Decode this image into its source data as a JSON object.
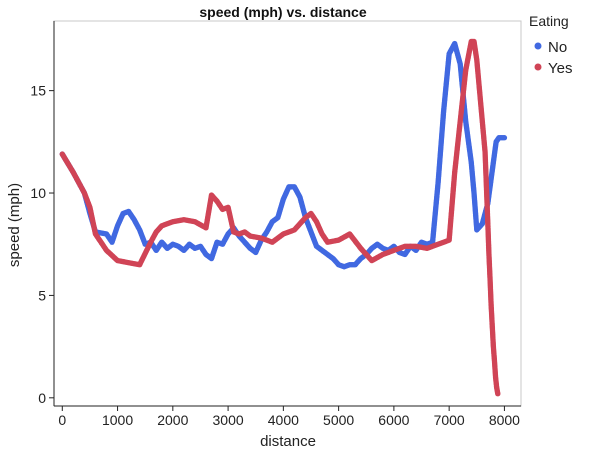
{
  "chart_data": {
    "type": "scatter",
    "title": "speed (mph) vs. distance",
    "xlabel": "distance",
    "ylabel": "speed (mph)",
    "xlim": [
      -150,
      8300
    ],
    "ylim": [
      -0.4,
      18.4
    ],
    "x_ticks": [
      0,
      1000,
      2000,
      3000,
      4000,
      5000,
      6000,
      7000,
      8000
    ],
    "y_ticks": [
      0,
      5,
      10,
      15
    ],
    "legend": {
      "title": "Eating",
      "position": "right"
    },
    "series": [
      {
        "name": "No",
        "color": "#4169E1",
        "x": [
          0,
          200,
          400,
          500,
          600,
          800,
          900,
          1000,
          1100,
          1200,
          1300,
          1400,
          1500,
          1600,
          1700,
          1800,
          1900,
          2000,
          2100,
          2200,
          2300,
          2400,
          2500,
          2600,
          2700,
          2800,
          2900,
          3000,
          3100,
          3200,
          3300,
          3400,
          3500,
          3600,
          3700,
          3800,
          3900,
          4000,
          4100,
          4200,
          4300,
          4400,
          4500,
          4600,
          4700,
          4800,
          4900,
          5000,
          5100,
          5200,
          5300,
          5400,
          5500,
          5600,
          5700,
          5800,
          5900,
          6000,
          6100,
          6200,
          6300,
          6400,
          6500,
          6600,
          6700,
          6800,
          6900,
          7000,
          7100,
          7200,
          7300,
          7400,
          7450,
          7500,
          7600,
          7700,
          7750,
          7800,
          7850,
          7900,
          8000
        ],
        "y": [
          11.9,
          11.0,
          10.0,
          9.0,
          8.1,
          8.0,
          7.6,
          8.4,
          9.0,
          9.1,
          8.7,
          8.2,
          7.5,
          7.6,
          7.2,
          7.6,
          7.3,
          7.5,
          7.4,
          7.2,
          7.5,
          7.3,
          7.4,
          7.0,
          6.8,
          7.6,
          7.5,
          8.0,
          8.3,
          7.9,
          7.6,
          7.3,
          7.1,
          7.7,
          8.1,
          8.6,
          8.8,
          9.7,
          10.3,
          10.3,
          9.8,
          8.8,
          8.1,
          7.4,
          7.2,
          7.0,
          6.8,
          6.5,
          6.4,
          6.5,
          6.5,
          6.8,
          7.0,
          7.3,
          7.5,
          7.3,
          7.2,
          7.4,
          7.1,
          7.0,
          7.4,
          7.2,
          7.6,
          7.5,
          7.6,
          10.5,
          14.0,
          16.8,
          17.3,
          16.3,
          13.5,
          11.5,
          10.0,
          8.2,
          8.5,
          9.5,
          10.5,
          11.5,
          12.5,
          12.7,
          12.7
        ]
      },
      {
        "name": "Yes",
        "color": "#D04456",
        "x": [
          0,
          200,
          400,
          500,
          600,
          800,
          1000,
          1200,
          1400,
          1600,
          1700,
          1800,
          2000,
          2200,
          2400,
          2600,
          2700,
          2800,
          2900,
          3000,
          3100,
          3200,
          3300,
          3400,
          3600,
          3800,
          4000,
          4200,
          4400,
          4500,
          4600,
          4700,
          4800,
          5000,
          5200,
          5400,
          5600,
          5800,
          6000,
          6200,
          6400,
          6600,
          6800,
          7000,
          7100,
          7200,
          7300,
          7400,
          7450,
          7500,
          7600,
          7650,
          7700,
          7720,
          7740,
          7760,
          7780,
          7800,
          7820,
          7840,
          7860,
          7880
        ],
        "y": [
          11.9,
          11.0,
          10.0,
          9.3,
          8.0,
          7.2,
          6.7,
          6.6,
          6.5,
          7.6,
          8.1,
          8.4,
          8.6,
          8.7,
          8.6,
          8.3,
          9.9,
          9.6,
          9.2,
          9.3,
          8.1,
          8.0,
          8.1,
          7.9,
          7.8,
          7.6,
          8.0,
          8.2,
          8.8,
          9.0,
          8.6,
          8.0,
          7.6,
          7.7,
          8.0,
          7.3,
          6.7,
          7.0,
          7.2,
          7.4,
          7.4,
          7.3,
          7.5,
          7.7,
          11.0,
          13.5,
          16.0,
          17.4,
          17.4,
          16.5,
          13.5,
          12.0,
          8.5,
          7.0,
          5.8,
          4.5,
          3.5,
          2.5,
          1.8,
          1.0,
          0.5,
          0.2
        ]
      }
    ]
  }
}
